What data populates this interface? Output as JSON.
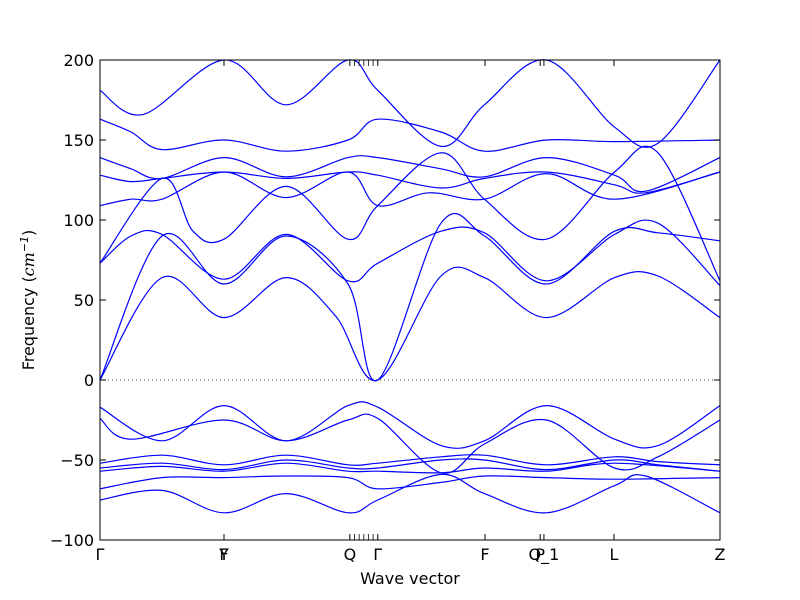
{
  "chart_data": {
    "type": "line",
    "title": "",
    "xlabel": "Wave vector",
    "ylabel": "Frequency ($cm^{-1}$)",
    "ylabel_parts": {
      "prefix": "Frequency (",
      "unit": "cm",
      "exp": "−1",
      "suffix": ")"
    },
    "ylim": [
      -100,
      200
    ],
    "yticks": [
      200,
      150,
      100,
      50,
      0,
      -50,
      -100
    ],
    "ytick_labels": [
      "200",
      "150",
      "100",
      "50",
      "0",
      "−50",
      "−100"
    ],
    "xlim": [
      0,
      1
    ],
    "high_symmetry_points": [
      {
        "label": "Γ",
        "x": 0.0
      },
      {
        "label": "Y",
        "x": 0.2
      },
      {
        "label": "F",
        "x": 0.2
      },
      {
        "label": "Q",
        "x": 0.403
      },
      {
        "label": "Γ",
        "x": 0.448
      },
      {
        "label": "F",
        "x": 0.621
      },
      {
        "label": "P",
        "x": 0.71
      },
      {
        "label": "Q_1",
        "x": 0.716
      },
      {
        "label": "L",
        "x": 0.829
      },
      {
        "label": "Z",
        "x": 1.0
      }
    ],
    "zero_line": true,
    "line_color": "#0000ff",
    "series": [
      {
        "x": [
          0,
          0.07,
          0.2,
          0.3,
          0.4,
          0.448,
          0.55,
          0.62,
          0.72,
          0.83,
          0.9,
          1.0
        ],
        "values": [
          181,
          166,
          200,
          172,
          200,
          181,
          146,
          172,
          200,
          158,
          148,
          200
        ]
      },
      {
        "x": [
          0,
          0.05,
          0.1,
          0.2,
          0.3,
          0.4,
          0.448,
          0.55,
          0.62,
          0.72,
          0.83,
          1.0
        ],
        "values": [
          163,
          155,
          144,
          150,
          143,
          150,
          163,
          155,
          143,
          150,
          149,
          150
        ]
      },
      {
        "x": [
          0,
          0.05,
          0.1,
          0.2,
          0.3,
          0.4,
          0.448,
          0.55,
          0.62,
          0.72,
          0.83,
          0.88,
          1.0
        ],
        "values": [
          139,
          132,
          126,
          139,
          127,
          139,
          139,
          132,
          127,
          139,
          128,
          118,
          139
        ]
      },
      {
        "x": [
          0,
          0.05,
          0.1,
          0.2,
          0.3,
          0.4,
          0.448,
          0.55,
          0.62,
          0.72,
          0.83,
          0.88,
          1.0
        ],
        "values": [
          128,
          124,
          126,
          130,
          126,
          130,
          128,
          120,
          126,
          130,
          122,
          117,
          130
        ]
      },
      {
        "x": [
          0,
          0.05,
          0.1,
          0.2,
          0.3,
          0.4,
          0.448,
          0.53,
          0.62,
          0.72,
          0.83,
          1.0
        ],
        "values": [
          109,
          113,
          113,
          130,
          114,
          130,
          109,
          117,
          113,
          129,
          113,
          130
        ]
      },
      {
        "x": [
          0,
          0.1,
          0.15,
          0.2,
          0.3,
          0.4,
          0.448,
          0.55,
          0.62,
          0.72,
          0.83,
          0.9,
          1.0
        ],
        "values": [
          73,
          126,
          93,
          88,
          121,
          88,
          109,
          142,
          113,
          88,
          130,
          142,
          62
        ]
      },
      {
        "x": [
          0,
          0.05,
          0.1,
          0.2,
          0.3,
          0.4,
          0.448,
          0.55,
          0.62,
          0.72,
          0.83,
          0.9,
          1.0
        ],
        "values": [
          73,
          90,
          91,
          63,
          91,
          62,
          73,
          93,
          92,
          62,
          91,
          98,
          59
        ]
      },
      {
        "x": [
          0,
          0.1,
          0.2,
          0.3,
          0.4,
          0.448,
          0.55,
          0.62,
          0.72,
          0.83,
          0.9,
          1.0
        ],
        "values": [
          0,
          90,
          60,
          90,
          60,
          0,
          98,
          90,
          60,
          93,
          92,
          87
        ]
      },
      {
        "x": [
          0,
          0.1,
          0.2,
          0.3,
          0.38,
          0.448,
          0.55,
          0.62,
          0.72,
          0.83,
          0.9,
          1.0
        ],
        "values": [
          0,
          64,
          39,
          64,
          40,
          0,
          65,
          64,
          39,
          64,
          65,
          39
        ]
      },
      {
        "x": [
          0,
          0.1,
          0.2,
          0.3,
          0.4,
          0.448,
          0.55,
          0.62,
          0.72,
          0.83,
          0.9,
          1.0
        ],
        "values": [
          -17,
          -38,
          -16,
          -38,
          -16,
          -17,
          -41,
          -38,
          -16,
          -37,
          -41,
          -16
        ]
      },
      {
        "x": [
          0,
          0.05,
          0.2,
          0.3,
          0.4,
          0.448,
          0.55,
          0.62,
          0.72,
          0.83,
          0.9,
          1.0
        ],
        "values": [
          -24,
          -37,
          -25,
          -38,
          -25,
          -24,
          -58,
          -40,
          -25,
          -55,
          -48,
          -25
        ]
      },
      {
        "x": [
          0,
          0.1,
          0.2,
          0.3,
          0.4,
          0.448,
          0.55,
          0.62,
          0.72,
          0.83,
          0.9,
          1.0
        ],
        "values": [
          -52,
          -47,
          -53,
          -47,
          -53,
          -52,
          -48,
          -47,
          -53,
          -48,
          -51,
          -53
        ]
      },
      {
        "x": [
          0,
          0.1,
          0.2,
          0.3,
          0.4,
          0.448,
          0.55,
          0.62,
          0.72,
          0.83,
          0.9,
          1.0
        ],
        "values": [
          -55,
          -52,
          -56,
          -50,
          -55,
          -55,
          -50,
          -50,
          -56,
          -50,
          -53,
          -57
        ]
      },
      {
        "x": [
          0,
          0.1,
          0.2,
          0.3,
          0.4,
          0.448,
          0.55,
          0.62,
          0.72,
          0.83,
          1.0
        ],
        "values": [
          -57,
          -54,
          -57,
          -52,
          -57,
          -57,
          -58,
          -55,
          -57,
          -52,
          -57
        ]
      },
      {
        "x": [
          0,
          0.1,
          0.2,
          0.3,
          0.4,
          0.448,
          0.55,
          0.62,
          0.72,
          0.83,
          1.0
        ],
        "values": [
          -68,
          -61,
          -61,
          -60,
          -61,
          -68,
          -64,
          -60,
          -61,
          -62,
          -61
        ]
      },
      {
        "x": [
          0,
          0.1,
          0.2,
          0.3,
          0.4,
          0.448,
          0.55,
          0.62,
          0.72,
          0.83,
          0.88,
          1.0
        ],
        "values": [
          -75,
          -69,
          -83,
          -71,
          -83,
          -75,
          -59,
          -71,
          -83,
          -66,
          -60,
          -83
        ]
      }
    ]
  }
}
